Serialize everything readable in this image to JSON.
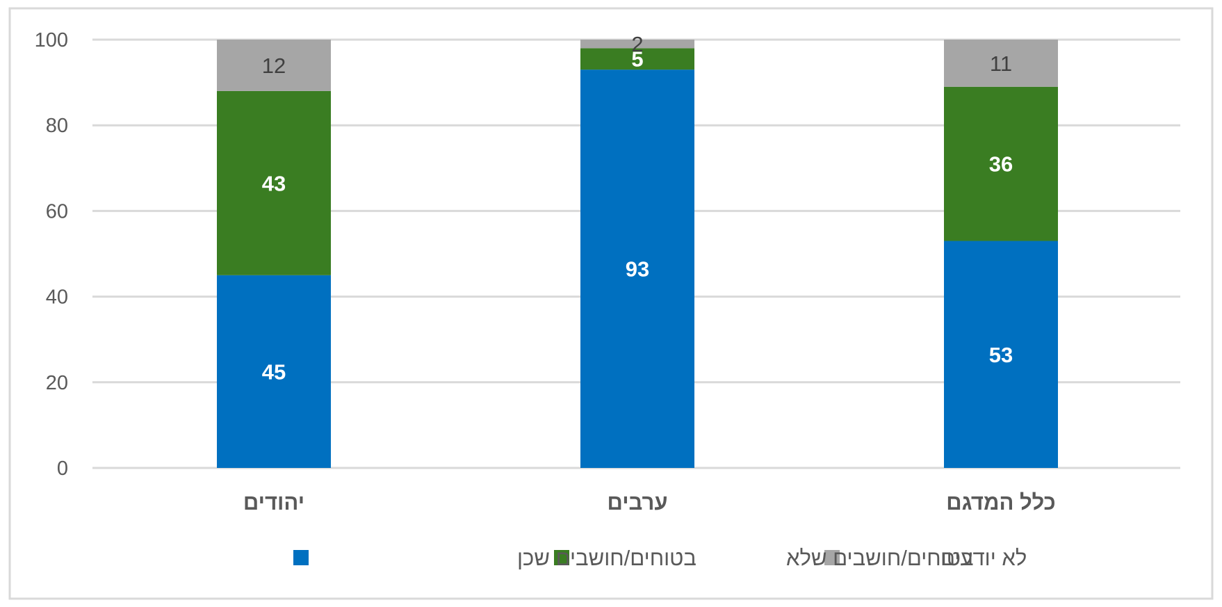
{
  "chart_data": {
    "type": "bar",
    "stacked": true,
    "categories": [
      "יהודים",
      "ערבים",
      "כלל המדגם"
    ],
    "series": [
      {
        "name": "בטוחים/חושבים שכן",
        "values": [
          45,
          93,
          53
        ],
        "color": "#0070c0"
      },
      {
        "name": "בטוחים/חושבים שלא",
        "values": [
          43,
          5,
          36
        ],
        "color": "#3a7d22"
      },
      {
        "name": "לא יודעים",
        "values": [
          12,
          2,
          11
        ],
        "color": "#a6a6a6"
      }
    ],
    "ylim": [
      0,
      100
    ],
    "yticks": [
      0,
      20,
      40,
      60,
      80,
      100
    ],
    "grid": true,
    "legend": "bottom",
    "data_labels": true
  }
}
